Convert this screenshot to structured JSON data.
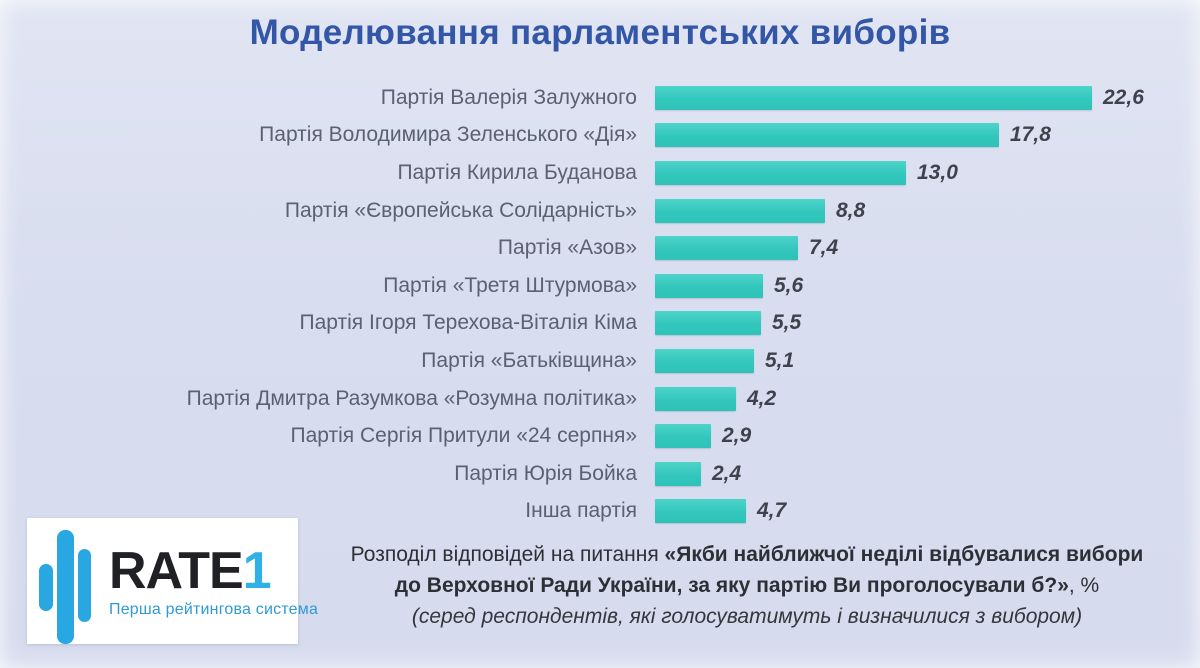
{
  "title": "Моделювання парламентських виборів",
  "chart_data": {
    "type": "bar",
    "orientation": "horizontal",
    "title": "Моделювання парламентських виборів",
    "xlabel": "",
    "ylabel": "",
    "xlim": [
      0,
      24
    ],
    "grid": false,
    "legend": false,
    "unit": "%",
    "bar_color": "#35cbc0",
    "categories": [
      "Партія Валерія Залужного",
      "Партія Володимира Зеленського «Дія»",
      "Партія Кирила Буданова",
      "Партія «Європейська Солідарність»",
      "Партія «Азов»",
      "Партія «Третя Штурмова»",
      "Партія Ігоря Терехова-Віталія Кіма",
      "Партія «Батьківщина»",
      "Партія Дмитра Разумкова «Розумна політика»",
      "Партія Сергія Притули «24 серпня»",
      "Партія Юрія Бойка",
      "Інша партія"
    ],
    "values": [
      22.6,
      17.8,
      13.0,
      8.8,
      7.4,
      5.6,
      5.5,
      5.1,
      4.2,
      2.9,
      2.4,
      4.7
    ],
    "value_labels": [
      "22,6",
      "17,8",
      "13,0",
      "8,8",
      "7,4",
      "5,6",
      "5,5",
      "5,1",
      "4,2",
      "2,9",
      "2,4",
      "4,7"
    ]
  },
  "footer": {
    "lines": [
      {
        "segments": [
          {
            "text": "Розподіл відповідей на питання ",
            "style": "normal"
          },
          {
            "text": "«Якби найближчої неділі відбувалися вибори",
            "style": "bold"
          }
        ]
      },
      {
        "segments": [
          {
            "text": "до Верховної Ради України, за яку партію Ви проголосували б?»",
            "style": "bold"
          },
          {
            "text": ", %",
            "style": "normal"
          }
        ]
      },
      {
        "segments": [
          {
            "text": "(серед респондентів, які голосуватимуть і визначилися з вибором)",
            "style": "italic"
          }
        ]
      }
    ]
  },
  "logo": {
    "brand_black": "RATE",
    "brand_blue": "1",
    "tagline": "Перша рейтингова система"
  },
  "colors": {
    "background": "#d8ddef",
    "bar": "#35cbc0",
    "title": "#3356a6",
    "category_label": "#5a6170",
    "value_label": "#3d424d",
    "logo_blue": "#28a7e2"
  }
}
